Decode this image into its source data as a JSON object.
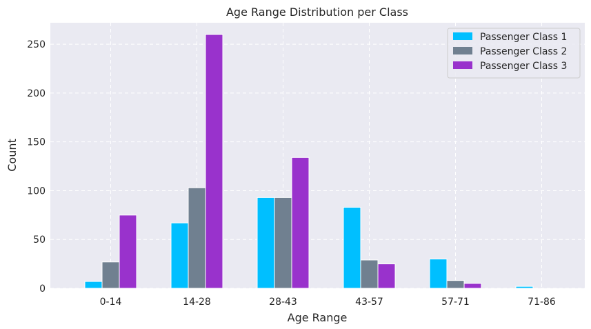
{
  "chart_data": {
    "type": "bar",
    "title": "Age Range Distribution per Class",
    "xlabel": "Age Range",
    "ylabel": "Count",
    "categories": [
      "0-14",
      "14-28",
      "28-43",
      "43-57",
      "57-71",
      "71-86"
    ],
    "ylim": [
      0,
      272
    ],
    "yticks": [
      0,
      50,
      100,
      150,
      200,
      250
    ],
    "grid": true,
    "legend_position": "top-right",
    "series": [
      {
        "name": "Passenger Class 1",
        "color": "#00bfff",
        "values": [
          7,
          67,
          93,
          83,
          30,
          2
        ]
      },
      {
        "name": "Passenger Class 2",
        "color": "#708090",
        "values": [
          27,
          103,
          93,
          29,
          8,
          0
        ]
      },
      {
        "name": "Passenger Class 3",
        "color": "#9932cc",
        "values": [
          75,
          260,
          134,
          25,
          5,
          0
        ]
      }
    ]
  }
}
